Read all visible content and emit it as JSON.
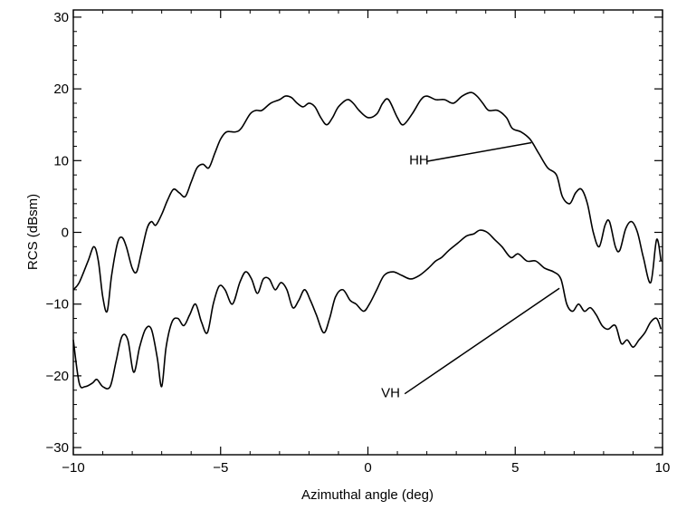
{
  "chart_data": {
    "type": "line",
    "title": "",
    "xlabel": "Azimuthal angle (deg)",
    "ylabel": "RCS (dBsm)",
    "xlim": [
      -10,
      10
    ],
    "ylim": [
      -31,
      31
    ],
    "x_ticks": [
      -10,
      -5,
      0,
      5,
      10
    ],
    "x_tick_labels": [
      "−10",
      "−5",
      "0",
      "5",
      "10"
    ],
    "y_ticks": [
      -30,
      -20,
      -10,
      0,
      10,
      20,
      30
    ],
    "y_tick_labels": [
      "−30",
      "−20",
      "−10",
      "0",
      "10",
      "20",
      "30"
    ],
    "grid": false,
    "series": [
      {
        "name": "HH",
        "color": "#000000",
        "points": [
          [
            -10.0,
            -8.0
          ],
          [
            -9.8,
            -7.0
          ],
          [
            -9.5,
            -4.0
          ],
          [
            -9.3,
            -2.0
          ],
          [
            -9.15,
            -4.0
          ],
          [
            -9.0,
            -9.0
          ],
          [
            -8.85,
            -11.0
          ],
          [
            -8.7,
            -6.0
          ],
          [
            -8.5,
            -1.5
          ],
          [
            -8.35,
            -0.7
          ],
          [
            -8.2,
            -2.0
          ],
          [
            -8.0,
            -5.0
          ],
          [
            -7.85,
            -5.5
          ],
          [
            -7.7,
            -3.0
          ],
          [
            -7.5,
            0.5
          ],
          [
            -7.35,
            1.5
          ],
          [
            -7.2,
            1.0
          ],
          [
            -7.0,
            2.5
          ],
          [
            -6.8,
            4.5
          ],
          [
            -6.6,
            6.0
          ],
          [
            -6.4,
            5.5
          ],
          [
            -6.2,
            5.0
          ],
          [
            -6.0,
            7.0
          ],
          [
            -5.8,
            9.0
          ],
          [
            -5.6,
            9.5
          ],
          [
            -5.4,
            9.0
          ],
          [
            -5.2,
            11.0
          ],
          [
            -5.0,
            13.0
          ],
          [
            -4.8,
            14.0
          ],
          [
            -4.5,
            14.0
          ],
          [
            -4.3,
            14.5
          ],
          [
            -4.0,
            16.5
          ],
          [
            -3.8,
            17.0
          ],
          [
            -3.6,
            17.0
          ],
          [
            -3.3,
            18.0
          ],
          [
            -3.0,
            18.5
          ],
          [
            -2.8,
            19.0
          ],
          [
            -2.6,
            18.8
          ],
          [
            -2.4,
            18.0
          ],
          [
            -2.2,
            17.5
          ],
          [
            -2.0,
            18.0
          ],
          [
            -1.8,
            17.5
          ],
          [
            -1.6,
            16.0
          ],
          [
            -1.4,
            15.0
          ],
          [
            -1.2,
            16.0
          ],
          [
            -1.0,
            17.5
          ],
          [
            -0.7,
            18.5
          ],
          [
            -0.5,
            18.0
          ],
          [
            -0.3,
            17.0
          ],
          [
            0.0,
            16.0
          ],
          [
            0.3,
            16.5
          ],
          [
            0.5,
            18.0
          ],
          [
            0.7,
            18.5
          ],
          [
            1.0,
            16.0
          ],
          [
            1.2,
            15.0
          ],
          [
            1.5,
            16.5
          ],
          [
            1.8,
            18.5
          ],
          [
            2.0,
            19.0
          ],
          [
            2.3,
            18.5
          ],
          [
            2.6,
            18.5
          ],
          [
            2.9,
            18.0
          ],
          [
            3.2,
            19.0
          ],
          [
            3.5,
            19.5
          ],
          [
            3.7,
            19.0
          ],
          [
            3.9,
            18.0
          ],
          [
            4.1,
            17.0
          ],
          [
            4.4,
            17.0
          ],
          [
            4.7,
            16.0
          ],
          [
            4.9,
            14.5
          ],
          [
            5.2,
            14.0
          ],
          [
            5.5,
            13.0
          ],
          [
            5.8,
            11.0
          ],
          [
            6.1,
            9.0
          ],
          [
            6.4,
            8.0
          ],
          [
            6.6,
            5.0
          ],
          [
            6.85,
            4.0
          ],
          [
            7.05,
            5.5
          ],
          [
            7.25,
            6.0
          ],
          [
            7.45,
            4.0
          ],
          [
            7.65,
            0.0
          ],
          [
            7.85,
            -2.0
          ],
          [
            8.05,
            1.0
          ],
          [
            8.2,
            1.5
          ],
          [
            8.4,
            -2.0
          ],
          [
            8.55,
            -2.5
          ],
          [
            8.75,
            0.5
          ],
          [
            8.95,
            1.5
          ],
          [
            9.15,
            0.0
          ],
          [
            9.35,
            -3.5
          ],
          [
            9.6,
            -7.0
          ],
          [
            9.8,
            -1.0
          ],
          [
            9.95,
            -4.0
          ]
        ]
      },
      {
        "name": "VH",
        "color": "#000000",
        "points": [
          [
            -10.0,
            -15.0
          ],
          [
            -9.8,
            -21.0
          ],
          [
            -9.6,
            -21.5
          ],
          [
            -9.35,
            -21.0
          ],
          [
            -9.2,
            -20.5
          ],
          [
            -9.0,
            -21.5
          ],
          [
            -8.75,
            -21.5
          ],
          [
            -8.55,
            -18.0
          ],
          [
            -8.35,
            -14.5
          ],
          [
            -8.15,
            -15.0
          ],
          [
            -7.95,
            -19.5
          ],
          [
            -7.75,
            -16.0
          ],
          [
            -7.55,
            -13.5
          ],
          [
            -7.35,
            -13.5
          ],
          [
            -7.15,
            -17.5
          ],
          [
            -7.0,
            -21.5
          ],
          [
            -6.85,
            -16.0
          ],
          [
            -6.65,
            -12.5
          ],
          [
            -6.45,
            -12.0
          ],
          [
            -6.25,
            -13.0
          ],
          [
            -6.05,
            -11.5
          ],
          [
            -5.85,
            -10.0
          ],
          [
            -5.65,
            -12.5
          ],
          [
            -5.45,
            -14.0
          ],
          [
            -5.25,
            -10.0
          ],
          [
            -5.05,
            -7.5
          ],
          [
            -4.85,
            -8.0
          ],
          [
            -4.6,
            -10.0
          ],
          [
            -4.35,
            -7.0
          ],
          [
            -4.15,
            -5.5
          ],
          [
            -3.95,
            -6.5
          ],
          [
            -3.75,
            -8.5
          ],
          [
            -3.55,
            -6.5
          ],
          [
            -3.35,
            -6.5
          ],
          [
            -3.15,
            -8.0
          ],
          [
            -2.95,
            -7.0
          ],
          [
            -2.75,
            -8.0
          ],
          [
            -2.55,
            -10.5
          ],
          [
            -2.35,
            -9.5
          ],
          [
            -2.15,
            -8.0
          ],
          [
            -1.95,
            -9.5
          ],
          [
            -1.75,
            -11.5
          ],
          [
            -1.5,
            -14.0
          ],
          [
            -1.3,
            -12.0
          ],
          [
            -1.1,
            -9.0
          ],
          [
            -0.85,
            -8.0
          ],
          [
            -0.6,
            -9.5
          ],
          [
            -0.4,
            -10.0
          ],
          [
            -0.15,
            -11.0
          ],
          [
            0.05,
            -10.0
          ],
          [
            0.3,
            -8.0
          ],
          [
            0.55,
            -6.0
          ],
          [
            0.85,
            -5.5
          ],
          [
            1.15,
            -6.0
          ],
          [
            1.45,
            -6.5
          ],
          [
            1.75,
            -6.0
          ],
          [
            2.05,
            -5.0
          ],
          [
            2.3,
            -4.0
          ],
          [
            2.5,
            -3.5
          ],
          [
            2.75,
            -2.5
          ],
          [
            3.05,
            -1.5
          ],
          [
            3.35,
            -0.5
          ],
          [
            3.6,
            -0.2
          ],
          [
            3.8,
            0.3
          ],
          [
            4.05,
            0.0
          ],
          [
            4.3,
            -1.0
          ],
          [
            4.55,
            -2.0
          ],
          [
            4.85,
            -3.5
          ],
          [
            5.1,
            -3.0
          ],
          [
            5.4,
            -4.0
          ],
          [
            5.7,
            -4.0
          ],
          [
            6.0,
            -5.0
          ],
          [
            6.3,
            -5.5
          ],
          [
            6.55,
            -6.5
          ],
          [
            6.75,
            -10.0
          ],
          [
            6.95,
            -11.0
          ],
          [
            7.15,
            -10.0
          ],
          [
            7.35,
            -11.0
          ],
          [
            7.55,
            -10.5
          ],
          [
            7.75,
            -11.5
          ],
          [
            7.95,
            -13.0
          ],
          [
            8.15,
            -13.5
          ],
          [
            8.4,
            -13.0
          ],
          [
            8.6,
            -15.5
          ],
          [
            8.8,
            -15.0
          ],
          [
            9.0,
            -16.0
          ],
          [
            9.2,
            -15.0
          ],
          [
            9.4,
            -14.0
          ],
          [
            9.6,
            -12.5
          ],
          [
            9.8,
            -12.0
          ],
          [
            9.95,
            -13.5
          ]
        ]
      }
    ],
    "annotations": [
      {
        "label": "HH",
        "text_pos": [
          1.4,
          9.5
        ],
        "line_from": [
          2.0,
          9.9
        ],
        "line_to": [
          5.55,
          12.5
        ]
      },
      {
        "label": "VH",
        "text_pos": [
          0.45,
          -23.0
        ],
        "line_from": [
          1.25,
          -22.5
        ],
        "line_to": [
          6.5,
          -7.8
        ]
      }
    ]
  }
}
